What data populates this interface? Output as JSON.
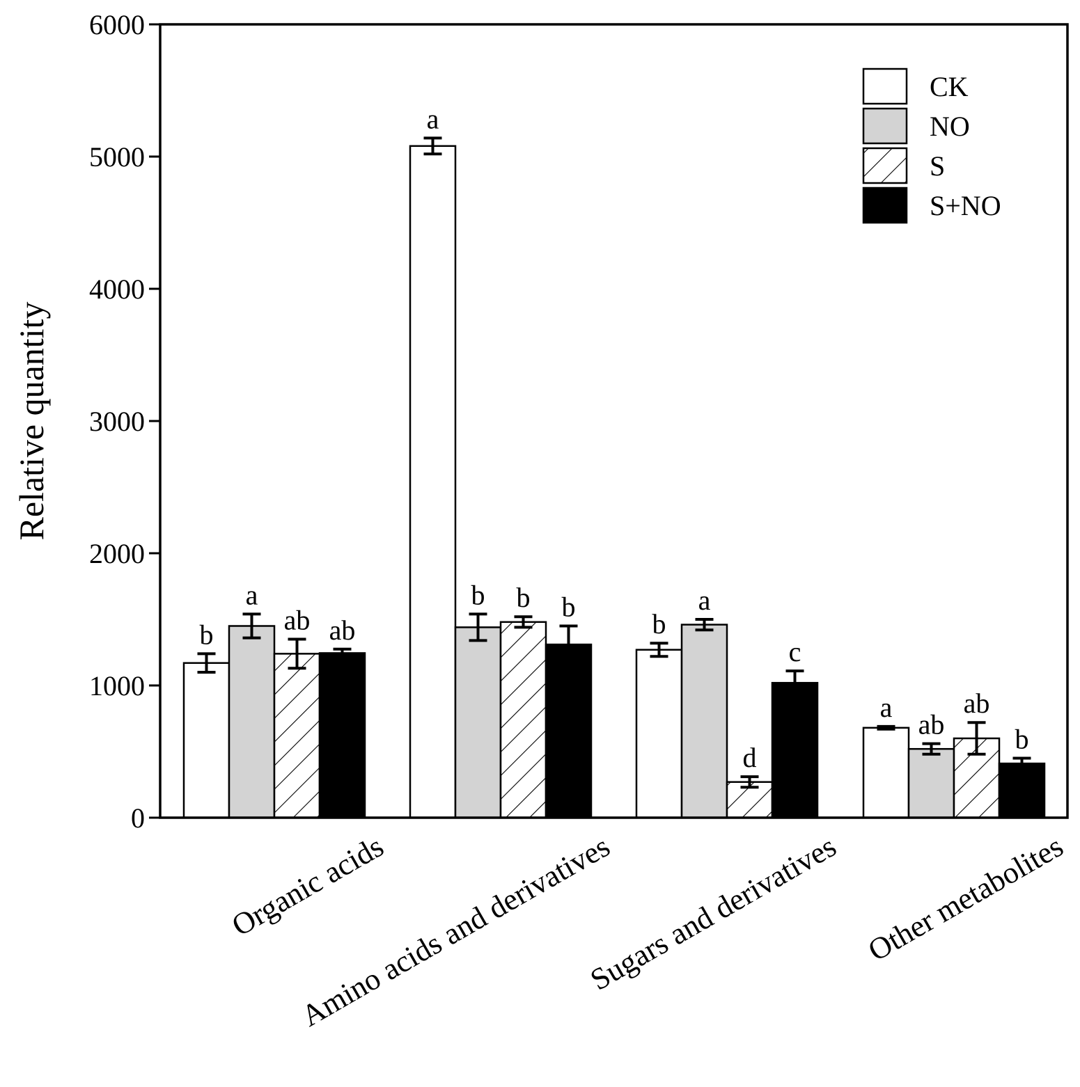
{
  "chart_data": {
    "type": "bar",
    "title": "",
    "xlabel": "",
    "ylabel": "Relative quantity",
    "ylim": [
      0,
      6000
    ],
    "yticks": [
      0,
      1000,
      2000,
      3000,
      4000,
      5000,
      6000
    ],
    "categories": [
      "Organic acids",
      "Amino acids and derivatives",
      "Sugars and derivatives",
      "Other metabolites"
    ],
    "series": [
      {
        "name": "CK",
        "fill": "white",
        "values": [
          1170,
          5080,
          1270,
          680
        ],
        "errors": [
          70,
          60,
          50,
          10
        ],
        "letters": [
          "b",
          "a",
          "b",
          "a"
        ]
      },
      {
        "name": "NO",
        "fill": "gray",
        "values": [
          1450,
          1440,
          1460,
          520
        ],
        "errors": [
          90,
          100,
          40,
          40
        ],
        "letters": [
          "a",
          "b",
          "a",
          "ab"
        ]
      },
      {
        "name": "S",
        "fill": "hatch",
        "values": [
          1240,
          1480,
          270,
          600
        ],
        "errors": [
          110,
          40,
          40,
          120
        ],
        "letters": [
          "ab",
          "b",
          "d",
          "ab"
        ]
      },
      {
        "name": "S+NO",
        "fill": "black",
        "values": [
          1245,
          1310,
          1020,
          410
        ],
        "errors": [
          30,
          140,
          90,
          40
        ],
        "letters": [
          "ab",
          "b",
          "c",
          "b"
        ]
      }
    ],
    "legend_position": "top-right",
    "grid": false
  },
  "colors": {
    "axis": "#000000",
    "gray_fill": "#d3d3d3",
    "black_fill": "#000000",
    "white_fill": "#ffffff"
  }
}
